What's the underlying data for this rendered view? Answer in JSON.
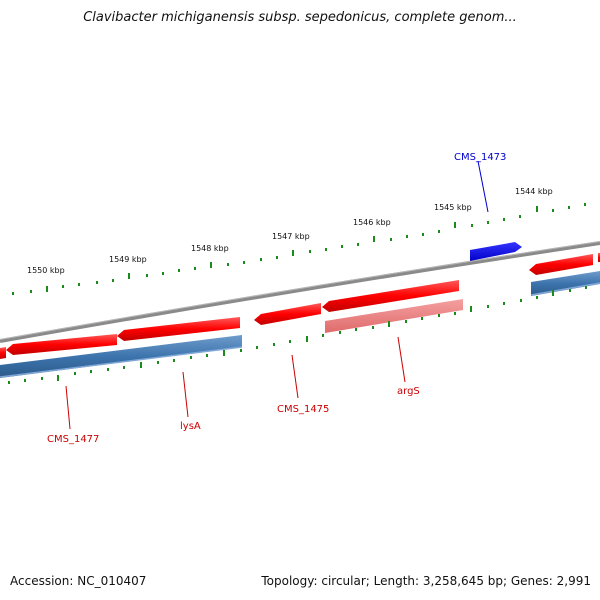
{
  "title": "Clavibacter michiganensis subsp. sepedonicus, complete genom...",
  "footer": {
    "accession": "Accession: NC_010407",
    "summary": "Topology: circular; Length: 3,258,645 bp; Genes: 2,991"
  },
  "colors": {
    "forward_gene": "#ff0000",
    "reverse_gene": "#ff0000",
    "cds_bar": "#4a80b8",
    "highlight_gene": "#0000ff",
    "rna_bar": "#f08080",
    "backbone": "#808080",
    "tick": "#008000",
    "label_red": "#cc0000",
    "label_blue": "#0000cc"
  },
  "ticks": [
    {
      "label": "1544 kbp"
    },
    {
      "label": "1545 kbp"
    },
    {
      "label": "1546 kbp"
    },
    {
      "label": "1547 kbp"
    },
    {
      "label": "1548 kbp"
    },
    {
      "label": "1549 kbp"
    },
    {
      "label": "1550 kbp"
    }
  ],
  "genes": [
    {
      "name": "CMS_1473",
      "color_key": "label_blue"
    },
    {
      "name": "argS",
      "color_key": "label_red"
    },
    {
      "name": "CMS_1475",
      "color_key": "label_red"
    },
    {
      "name": "lysA",
      "color_key": "label_red"
    },
    {
      "name": "CMS_1477",
      "color_key": "label_red"
    }
  ]
}
